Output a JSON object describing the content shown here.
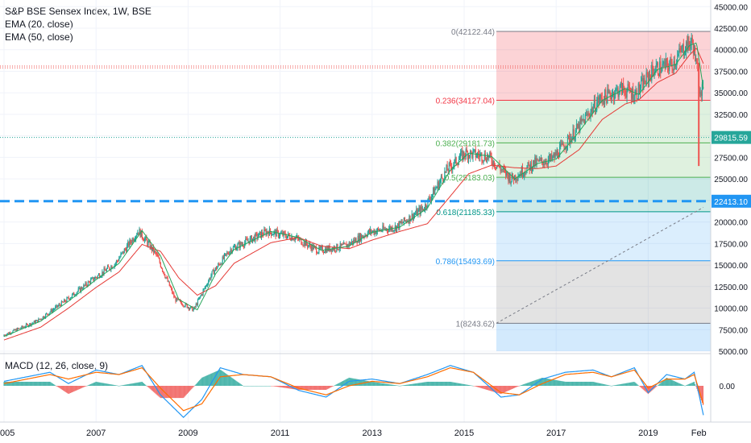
{
  "legend": {
    "title": "S&P BSE Sensex Index, 1W, BSE",
    "ema20": "EMA (20, close)",
    "ema50": "EMA (50, close)",
    "macd": "MACD (12, 26, close, 9)"
  },
  "price_axis": {
    "ticks": [
      "45000.00",
      "42500.00",
      "40000.00",
      "37500.00",
      "35000.00",
      "32500.00",
      "30000.00",
      "27500.00",
      "25000.00",
      "22500.00",
      "20000.00",
      "17500.00",
      "15000.00",
      "12500.00",
      "10000.00",
      "7500.00",
      "5000.00"
    ],
    "current_label": "29815.59",
    "line_label": "22413.10"
  },
  "macd_axis": {
    "zero_label": "0.00"
  },
  "time_axis": {
    "labels": [
      "005",
      "2007",
      "2009",
      "2011",
      "2013",
      "2015",
      "2017",
      "2019",
      "Feb"
    ]
  },
  "colors": {
    "up": "#26a69a",
    "down": "#ef5350",
    "ema20": "#26a65b",
    "ema50": "#e53935",
    "macd": "#2196f3",
    "signal": "#ff6d00",
    "hline": "#2196f3"
  },
  "chart_data": [
    {
      "type": "line",
      "title": "S&P BSE Sensex Index, 1W, BSE",
      "ylim": [
        5000,
        45000
      ],
      "x_range": [
        "2005",
        "Feb 2020"
      ],
      "series": [
        {
          "name": "EMA (20, close)",
          "x": [
            2005.0,
            2005.8,
            2006.4,
            2007.0,
            2007.5,
            2008.0,
            2008.4,
            2008.8,
            2009.2,
            2009.6,
            2010.0,
            2010.8,
            2011.4,
            2011.9,
            2012.5,
            2013.0,
            2013.6,
            2014.2,
            2014.7,
            2015.1,
            2015.6,
            2016.1,
            2016.6,
            2017.0,
            2017.5,
            2018.0,
            2018.5,
            2018.8,
            2019.2,
            2019.6,
            2019.9,
            2020.05,
            2020.2
          ],
          "values": [
            6700,
            8500,
            10800,
            13300,
            15200,
            19000,
            16100,
            11000,
            9800,
            14000,
            16800,
            18900,
            18200,
            16700,
            17200,
            18800,
            19400,
            21600,
            26000,
            28000,
            27600,
            25000,
            26800,
            27300,
            30500,
            34100,
            35500,
            34800,
            37700,
            38300,
            40500,
            40800,
            35500
          ]
        },
        {
          "name": "EMA (50, close)",
          "x": [
            2005.0,
            2005.8,
            2006.4,
            2007.0,
            2007.5,
            2008.0,
            2008.4,
            2008.8,
            2009.2,
            2009.6,
            2010.0,
            2010.8,
            2011.4,
            2011.9,
            2012.5,
            2013.0,
            2013.6,
            2014.2,
            2014.7,
            2015.1,
            2015.6,
            2016.1,
            2016.6,
            2017.0,
            2017.5,
            2018.0,
            2018.5,
            2018.8,
            2019.2,
            2019.6,
            2019.9,
            2020.05,
            2020.2
          ],
          "values": [
            6300,
            7800,
            10000,
            12400,
            14200,
            17400,
            16600,
            13500,
            11500,
            12600,
            15200,
            17600,
            18200,
            17200,
            16900,
            17900,
            18900,
            19800,
            23000,
            25600,
            26600,
            26300,
            26200,
            26500,
            28400,
            31900,
            33700,
            34200,
            36200,
            37300,
            39400,
            40200,
            38400
          ]
        }
      ],
      "fibonacci": [
        {
          "ratio": "0",
          "level": 42122.44,
          "label": "0(42122.44)"
        },
        {
          "ratio": "0.236",
          "level": 34127.04,
          "label": "0.236(34127.04)"
        },
        {
          "ratio": "0.382",
          "level": 29181.73,
          "label": "0.382(29181.73)"
        },
        {
          "ratio": "0.5",
          "level": 25183.03,
          "label": "0.5(25183.03)"
        },
        {
          "ratio": "0.618",
          "level": 21185.33,
          "label": "0.618(21185.33)"
        },
        {
          "ratio": "0.786",
          "level": 15493.69,
          "label": "0.786(15493.69)"
        },
        {
          "ratio": "1",
          "level": 8243.62,
          "label": "1(8243.62)"
        }
      ],
      "horizontal_lines": [
        22413.1,
        29815.59,
        38100,
        37900
      ],
      "trendline": [
        {
          "x": 2015.7,
          "y": 8243.62
        },
        {
          "x": 2020.2,
          "y": 21700
        }
      ],
      "last_close": 29815.59
    },
    {
      "type": "bar",
      "title": "MACD (12, 26, close, 9)",
      "series": [
        {
          "name": "MACD",
          "x": [
            2005.0,
            2006.0,
            2006.4,
            2007.0,
            2007.5,
            2008.0,
            2008.4,
            2008.9,
            2009.3,
            2009.7,
            2010.2,
            2010.8,
            2011.4,
            2012.0,
            2012.5,
            2013.0,
            2013.6,
            2014.2,
            2014.7,
            2015.2,
            2015.8,
            2016.2,
            2016.7,
            2017.2,
            2017.8,
            2018.2,
            2018.7,
            2019.0,
            2019.4,
            2019.8,
            2020.0,
            2020.2
          ],
          "values": [
            0.2,
            0.6,
            0.1,
            0.7,
            0.5,
            0.9,
            -0.4,
            -1.4,
            -0.6,
            0.8,
            0.5,
            0.4,
            -0.2,
            -0.5,
            0.2,
            0.3,
            0.1,
            0.5,
            0.9,
            0.6,
            -0.5,
            -0.4,
            0.3,
            0.6,
            0.7,
            0.4,
            0.8,
            -0.3,
            0.5,
            0.3,
            0.6,
            -1.3
          ]
        },
        {
          "name": "Signal",
          "x": [
            2005.0,
            2006.0,
            2006.4,
            2007.0,
            2007.5,
            2008.0,
            2008.4,
            2008.9,
            2009.3,
            2009.7,
            2010.2,
            2010.8,
            2011.4,
            2012.0,
            2012.5,
            2013.0,
            2013.6,
            2014.2,
            2014.7,
            2015.2,
            2015.8,
            2016.2,
            2016.7,
            2017.2,
            2017.8,
            2018.2,
            2018.7,
            2019.0,
            2019.4,
            2019.8,
            2020.0,
            2020.2
          ],
          "values": [
            0.1,
            0.5,
            0.3,
            0.6,
            0.5,
            0.8,
            -0.1,
            -1.1,
            -0.8,
            0.4,
            0.5,
            0.4,
            -0.1,
            -0.4,
            0.0,
            0.2,
            0.1,
            0.4,
            0.8,
            0.6,
            -0.3,
            -0.4,
            0.1,
            0.5,
            0.6,
            0.4,
            0.7,
            -0.1,
            0.3,
            0.3,
            0.5,
            -0.8
          ]
        }
      ],
      "ylim": [
        -1.6,
        1.2
      ]
    }
  ]
}
